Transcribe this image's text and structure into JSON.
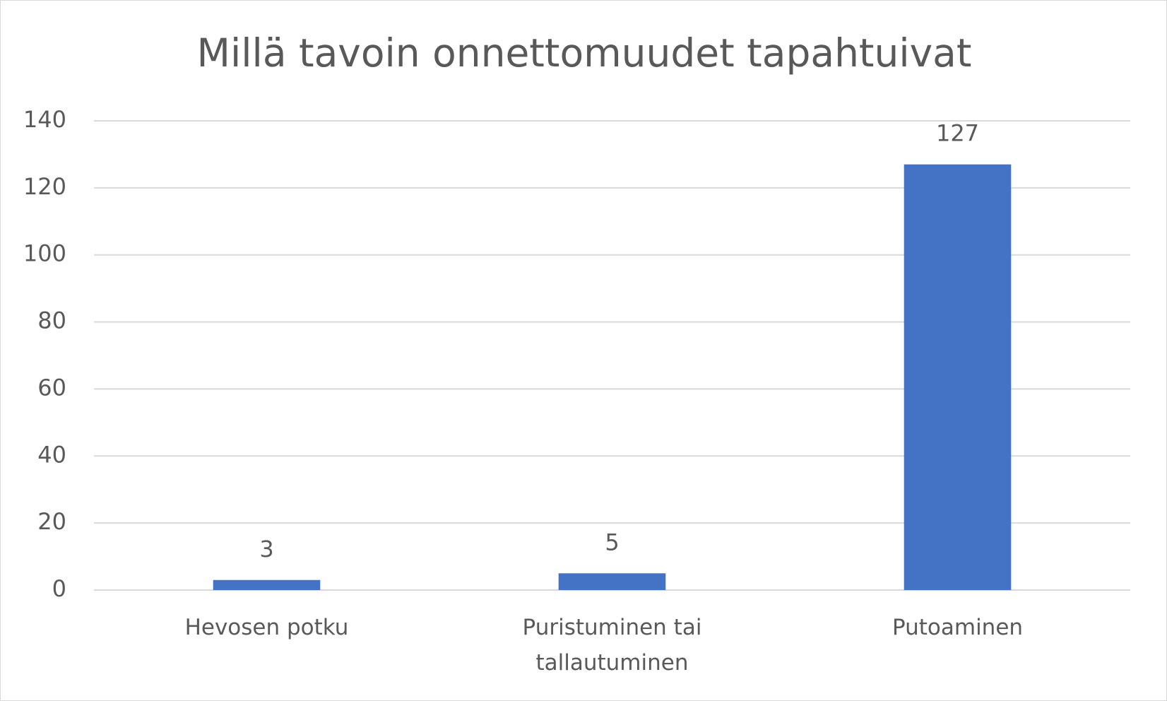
{
  "chart_data": {
    "type": "bar",
    "title": "Millä tavoin onnettomuudet tapahtuivat",
    "categories": [
      "Hevosen potku",
      "Puristuminen tai tallautuminen",
      "Putoaminen"
    ],
    "values": [
      3,
      5,
      127
    ],
    "color": "#4472c4",
    "ylim": [
      0,
      140
    ],
    "yticks": [
      0,
      20,
      40,
      60,
      80,
      100,
      120,
      140
    ],
    "grid": true,
    "data_labels": true
  }
}
